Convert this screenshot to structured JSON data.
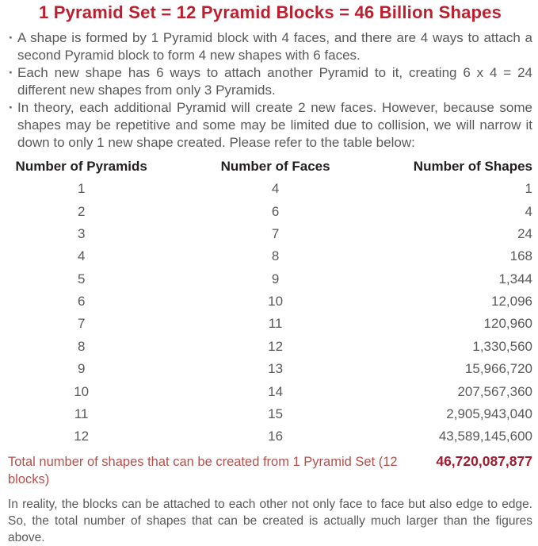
{
  "page": {
    "title": "1 Pyramid Set = 12 Pyramid Blocks = 46 Billion Shapes"
  },
  "bullet_char": "·",
  "bullets": [
    "A shape is formed by 1 Pyramid block with 4 faces, and there are 4 ways to attach a second Pyramid block to form 4 new shapes with 6 faces.",
    "Each new shape has 6 ways to attach another Pyramid to it, creating 6 x 4 = 24 different new shapes from only 3 Pyramids.",
    "In theory, each additional Pyramid will create 2 new faces. However, because some shapes may be repetitive and some may be limited due to collision, we will narrow it down to only 1 new shape created. Please refer to the table below:"
  ],
  "table": {
    "headers": [
      "Number of Pyramids",
      "Number of Faces",
      "Number of Shapes"
    ],
    "rows": [
      [
        "1",
        "4",
        "1"
      ],
      [
        "2",
        "6",
        "4"
      ],
      [
        "3",
        "7",
        "24"
      ],
      [
        "4",
        "8",
        "168"
      ],
      [
        "5",
        "9",
        "1,344"
      ],
      [
        "6",
        "10",
        "12,096"
      ],
      [
        "7",
        "11",
        "120,960"
      ],
      [
        "8",
        "12",
        "1,330,560"
      ],
      [
        "9",
        "13",
        "15,966,720"
      ],
      [
        "10",
        "14",
        "207,567,360"
      ],
      [
        "11",
        "15",
        "2,905,943,040"
      ],
      [
        "12",
        "16",
        "43,589,145,600"
      ]
    ]
  },
  "total": {
    "label": "Total number of shapes that can be created from 1 Pyramid Set (12 blocks)",
    "value": "46,720,087,877"
  },
  "footer": "In reality, the blocks can be attached to each other not only face to face but also edge to edge. So, the total number of shapes that can be created is actually much larger than the figures above.",
  "colors": {
    "title_red": "#be1e2d",
    "total_label_red": "#b4504b",
    "total_value_red": "#a5182e",
    "body_gray": "#58595b",
    "header_black": "#231f20"
  }
}
